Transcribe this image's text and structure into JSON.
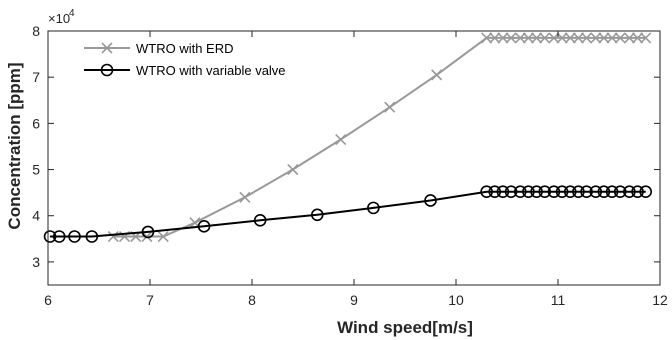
{
  "chart_data": {
    "type": "line",
    "xlabel": "Wind speed[m/s]",
    "ylabel": "Concentration [ppm]",
    "xlim": [
      6,
      12
    ],
    "ylim": [
      2.5,
      8
    ],
    "x_ticks": [
      6,
      7,
      8,
      9,
      10,
      11,
      12
    ],
    "y_ticks": [
      3,
      4,
      5,
      6,
      7,
      8
    ],
    "y_multiplier": "×10",
    "y_exponent": "4",
    "grid": false,
    "legend_position": "top-left",
    "colors": {
      "erd": "#999999",
      "valve": "#000000",
      "axis": "#262626"
    },
    "series": [
      {
        "name": "WTRO with ERD",
        "marker": "x",
        "x": [
          6.64,
          6.75,
          6.86,
          6.97,
          7.13,
          7.44,
          7.93,
          8.4,
          8.87,
          9.35,
          9.81,
          10.3,
          10.38,
          10.46,
          10.54,
          10.63,
          10.71,
          10.79,
          10.87,
          10.96,
          11.04,
          11.12,
          11.2,
          11.28,
          11.37,
          11.45,
          11.53,
          11.61,
          11.7,
          11.78,
          11.86
        ],
        "values": [
          3.55,
          3.55,
          3.55,
          3.55,
          3.55,
          3.85,
          4.4,
          5.0,
          5.65,
          6.35,
          7.05,
          7.85,
          7.85,
          7.85,
          7.85,
          7.85,
          7.85,
          7.85,
          7.85,
          7.85,
          7.85,
          7.85,
          7.85,
          7.85,
          7.85,
          7.85,
          7.85,
          7.85,
          7.85,
          7.85,
          7.85
        ]
      },
      {
        "name": "WTRO with variable valve",
        "marker": "o",
        "x": [
          6.02,
          6.11,
          6.26,
          6.43,
          6.98,
          7.53,
          8.08,
          8.64,
          9.19,
          9.75,
          10.3,
          10.38,
          10.46,
          10.54,
          10.63,
          10.71,
          10.79,
          10.87,
          10.96,
          11.04,
          11.12,
          11.2,
          11.28,
          11.37,
          11.45,
          11.53,
          11.61,
          11.7,
          11.78,
          11.86
        ],
        "values": [
          3.55,
          3.55,
          3.55,
          3.55,
          3.65,
          3.77,
          3.9,
          4.02,
          4.17,
          4.33,
          4.52,
          4.52,
          4.52,
          4.52,
          4.52,
          4.52,
          4.52,
          4.52,
          4.52,
          4.52,
          4.52,
          4.52,
          4.52,
          4.52,
          4.52,
          4.52,
          4.52,
          4.52,
          4.52,
          4.52
        ]
      }
    ]
  }
}
